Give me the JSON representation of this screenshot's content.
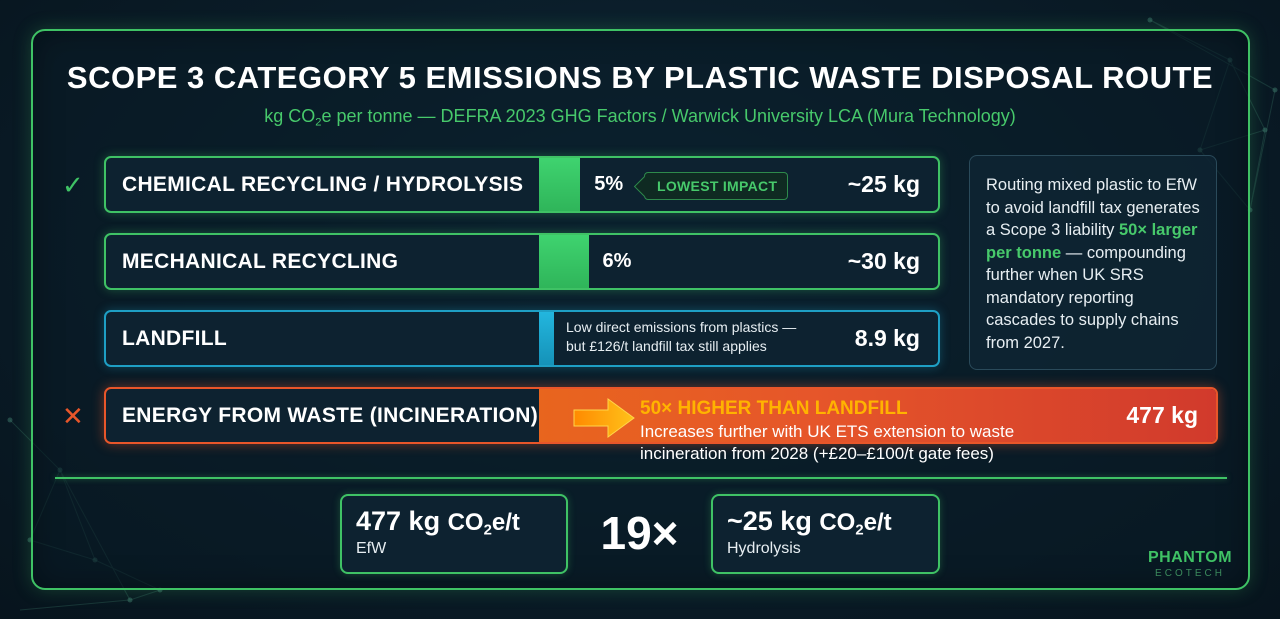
{
  "title": "SCOPE 3 CATEGORY 5 EMISSIONS BY PLASTIC WASTE DISPOSAL ROUTE",
  "subtitle": {
    "prefix": "kg CO",
    "sub": "2",
    "suffix": "e per tonne — DEFRA 2023 GHG Factors / Warwick University LCA (Mura Technology)"
  },
  "colors": {
    "accent_green": "#3fc265",
    "landfill_blue": "#1e9fc4",
    "efw_red": "#e8562a",
    "highlight_orange": "#ffb300"
  },
  "chart_data": {
    "type": "bar",
    "orientation": "horizontal",
    "unit": "kg CO2e per tonne",
    "categories": [
      "CHEMICAL RECYCLING / HYDROLYSIS",
      "MECHANICAL RECYCLING",
      "LANDFILL",
      "ENERGY FROM WASTE (INCINERATION)"
    ],
    "values": [
      25,
      30,
      8.9,
      477
    ],
    "value_labels": [
      "~25 kg",
      "~30 kg",
      "8.9 kg",
      "477 kg"
    ],
    "percent_labels": [
      "5%",
      "6%",
      "",
      ""
    ],
    "bar_colors": [
      "#3fc265",
      "#3fc265",
      "#1e9fc4",
      "#e8562a"
    ],
    "status_icons": [
      "check-icon",
      "",
      "",
      "cross-icon"
    ],
    "annotations": {
      "chemical_tag": "LOWEST IMPACT",
      "landfill_note": [
        "Low direct emissions from plastics —",
        "but £126/t landfill tax still applies"
      ],
      "efw_headline": "50× HIGHER THAN LANDFILL",
      "efw_note": [
        "Increases further with UK ETS extension to waste",
        "incineration from 2028 (+£20–£100/t gate fees)"
      ]
    }
  },
  "callout": {
    "before": "Routing mixed plastic to EfW to avoid landfill tax generates a Scope 3 liability ",
    "highlight": "50× larger per tonne",
    "after": " — compounding further when UK SRS mandatory reporting cascades to supply chains from 2027."
  },
  "comparison": {
    "left": {
      "value": "477 kg",
      "unit_prefix": "CO",
      "unit_sub": "2",
      "unit_suffix": "e/t",
      "label": "EfW"
    },
    "multiplier": "19×",
    "right": {
      "value": "~25 kg",
      "unit_prefix": "CO",
      "unit_sub": "2",
      "unit_suffix": "e/t",
      "label": "Hydrolysis"
    }
  },
  "brand": {
    "name": "PHANTOM",
    "tagline": "ECOTECH"
  }
}
